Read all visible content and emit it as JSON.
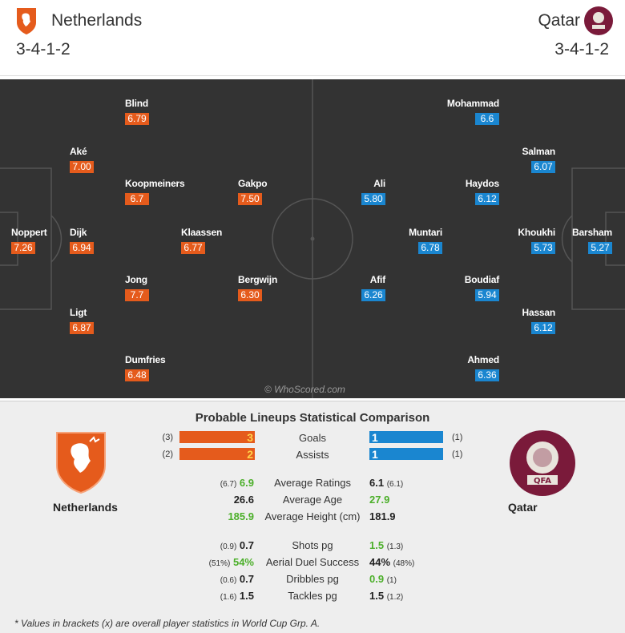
{
  "header": {
    "home": {
      "name": "Netherlands",
      "formation": "3-4-1-2"
    },
    "away": {
      "name": "Qatar",
      "formation": "3-4-1-2"
    }
  },
  "colors": {
    "home": "#e55b1c",
    "away": "#1a86d0",
    "pitch": "#333333",
    "better": "#4caf2a"
  },
  "pitch": {
    "watermark": "© WhoScored.com",
    "home_players": [
      {
        "name": "Noppert",
        "rating": "7.26"
      },
      {
        "name": "Aké",
        "rating": "7.00"
      },
      {
        "name": "Dijk",
        "rating": "6.94"
      },
      {
        "name": "Ligt",
        "rating": "6.87"
      },
      {
        "name": "Blind",
        "rating": "6.79"
      },
      {
        "name": "Koopmeiners",
        "rating": "6.7"
      },
      {
        "name": "Jong",
        "rating": "7.7"
      },
      {
        "name": "Dumfries",
        "rating": "6.48"
      },
      {
        "name": "Klaassen",
        "rating": "6.77"
      },
      {
        "name": "Gakpo",
        "rating": "7.50"
      },
      {
        "name": "Bergwijn",
        "rating": "6.30"
      }
    ],
    "away_players": [
      {
        "name": "Barsham",
        "rating": "5.27"
      },
      {
        "name": "Salman",
        "rating": "6.07"
      },
      {
        "name": "Khoukhi",
        "rating": "5.73"
      },
      {
        "name": "Hassan",
        "rating": "6.12"
      },
      {
        "name": "Mohammad",
        "rating": "6.6"
      },
      {
        "name": "Haydos",
        "rating": "6.12"
      },
      {
        "name": "Boudiaf",
        "rating": "5.94"
      },
      {
        "name": "Ahmed",
        "rating": "6.36"
      },
      {
        "name": "Muntari",
        "rating": "6.78"
      },
      {
        "name": "Ali",
        "rating": "5.80"
      },
      {
        "name": "Afif",
        "rating": "6.26"
      }
    ]
  },
  "stats": {
    "title": "Probable Lineups Statistical Comparison",
    "home_name": "Netherlands",
    "away_name": "Qatar",
    "bars": [
      {
        "label": "Goals",
        "home": "3",
        "home_overall": "(3)",
        "away": "1",
        "away_overall": "(1)"
      },
      {
        "label": "Assists",
        "home": "2",
        "home_overall": "(2)",
        "away": "1",
        "away_overall": "(1)"
      }
    ],
    "rows": [
      {
        "label": "Average Ratings",
        "home_overall": "(6.7)",
        "home": "6.9",
        "away": "6.1",
        "away_overall": "(6.1)",
        "better": "home"
      },
      {
        "label": "Average Age",
        "home_overall": "",
        "home": "26.6",
        "away": "27.9",
        "away_overall": "",
        "better": "away"
      },
      {
        "label": "Average Height (cm)",
        "home_overall": "",
        "home": "185.9",
        "away": "181.9",
        "away_overall": "",
        "better": "home"
      },
      {
        "label": "Shots pg",
        "home_overall": "(0.9)",
        "home": "0.7",
        "away": "1.5",
        "away_overall": "(1.3)",
        "better": "away"
      },
      {
        "label": "Aerial Duel Success",
        "home_overall": "(51%)",
        "home": "54%",
        "away": "44%",
        "away_overall": "(48%)",
        "better": "home"
      },
      {
        "label": "Dribbles pg",
        "home_overall": "(0.6)",
        "home": "0.7",
        "away": "0.9",
        "away_overall": "(1)",
        "better": "away"
      },
      {
        "label": "Tackles pg",
        "home_overall": "(1.6)",
        "home": "1.5",
        "away": "1.5",
        "away_overall": "(1.2)",
        "better": ""
      }
    ],
    "footnote": "* Values in brackets (x) are overall player statistics in World Cup Grp. A."
  }
}
